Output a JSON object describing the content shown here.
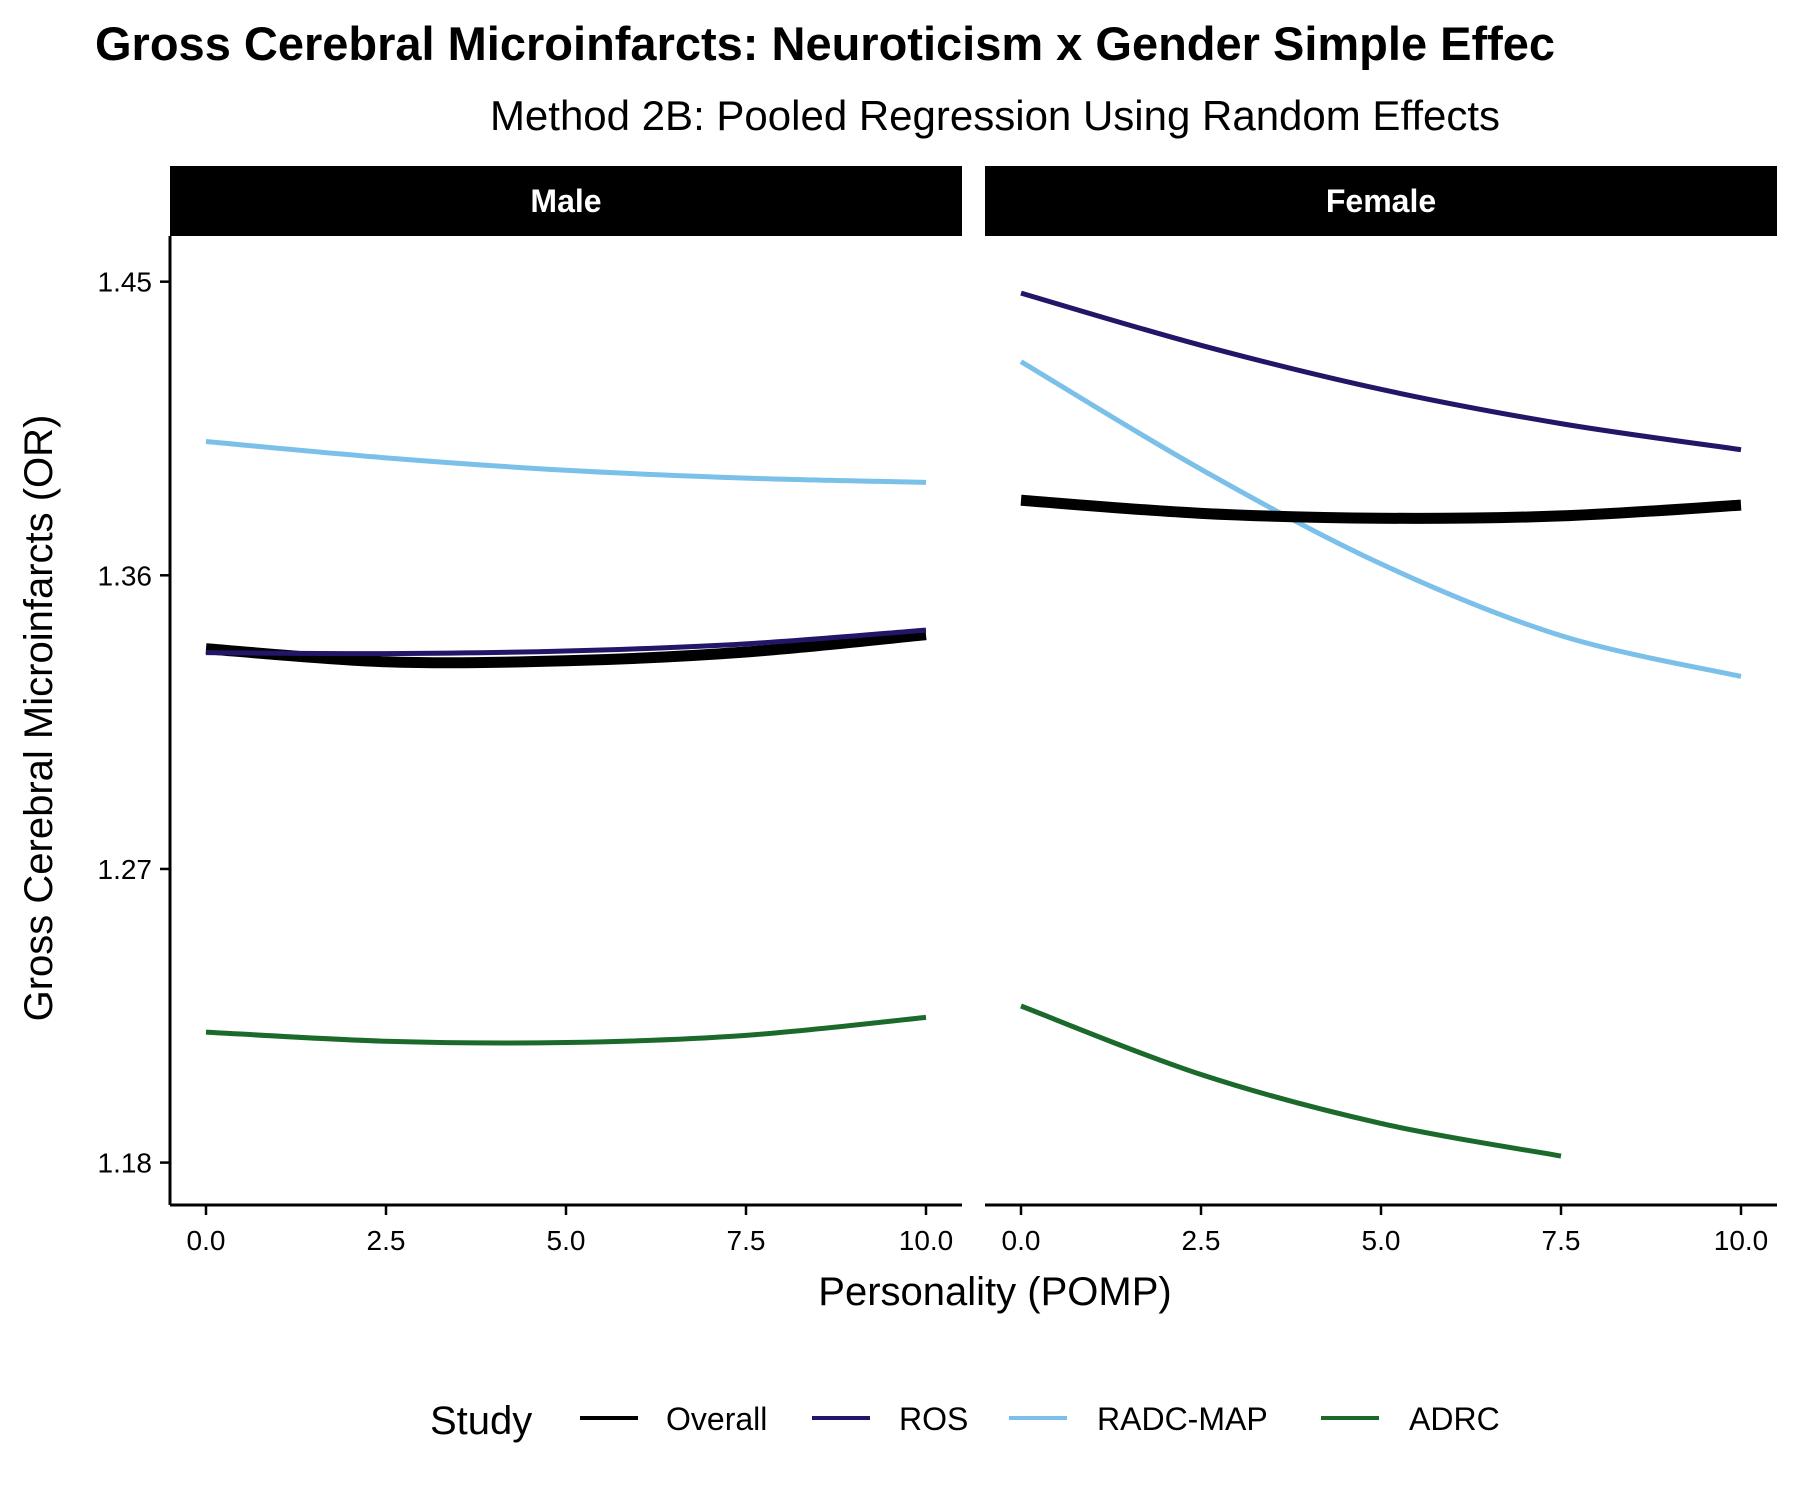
{
  "chart_data": {
    "type": "line",
    "title": "Gross Cerebral Microinfarcts: Neuroticism x Gender Simple Effec",
    "subtitle": "Method 2B: Pooled Regression Using Random Effects",
    "xlabel": "Personality (POMP)",
    "ylabel": "Gross Cerebral Microinfarcts (OR)",
    "xlim": [
      -0.5,
      10.5
    ],
    "ylim": [
      1.167,
      1.464
    ],
    "x_ticks": [
      "0.0",
      "2.5",
      "5.0",
      "7.5",
      "10.0"
    ],
    "y_ticks": [
      "1.18",
      "1.27",
      "1.36",
      "1.45"
    ],
    "grid": false,
    "legend": {
      "title": "Study",
      "position": "bottom",
      "entries": [
        "Overall",
        "ROS",
        "RADC-MAP",
        "ADRC"
      ]
    },
    "colors": {
      "Overall": "#000000",
      "ROS": "#231567",
      "RADC-MAP": "#7ac0e8",
      "ADRC": "#1b6a2b"
    },
    "panels": [
      {
        "label": "Male",
        "series": [
          {
            "name": "Overall",
            "x": [
              0,
              2.5,
              5,
              7.5,
              10
            ],
            "y": [
              1.3375,
              1.3335,
              1.3338,
              1.3365,
              1.3418
            ]
          },
          {
            "name": "ROS",
            "x": [
              0,
              2.5,
              5,
              7.5,
              10
            ],
            "y": [
              1.3363,
              1.336,
              1.3368,
              1.339,
              1.3432
            ]
          },
          {
            "name": "RADC-MAP",
            "x": [
              0,
              2.5,
              5,
              7.5,
              10
            ],
            "y": [
              1.401,
              1.396,
              1.3922,
              1.3898,
              1.3885
            ]
          },
          {
            "name": "ADRC",
            "x": [
              0,
              2.5,
              5,
              7.5,
              10
            ],
            "y": [
              1.22,
              1.2172,
              1.2168,
              1.219,
              1.2245
            ]
          }
        ]
      },
      {
        "label": "Female",
        "series": [
          {
            "name": "Overall",
            "x": [
              0,
              2.5,
              5,
              7.5,
              10
            ],
            "y": [
              1.383,
              1.379,
              1.3775,
              1.3782,
              1.3815
            ]
          },
          {
            "name": "ROS",
            "x": [
              0,
              2.5,
              5,
              7.5,
              10
            ],
            "y": [
              1.4465,
              1.4305,
              1.417,
              1.4065,
              1.3985
            ]
          },
          {
            "name": "RADC-MAP",
            "x": [
              0,
              2.5,
              5,
              7.5,
              10
            ],
            "y": [
              1.4255,
              1.3925,
              1.3635,
              1.3415,
              1.329
            ]
          },
          {
            "name": "ADRC",
            "x": [
              0,
              2.5,
              5,
              7.5
            ],
            "y": [
              1.228,
              1.207,
              1.192,
              1.182
            ]
          }
        ]
      }
    ]
  }
}
